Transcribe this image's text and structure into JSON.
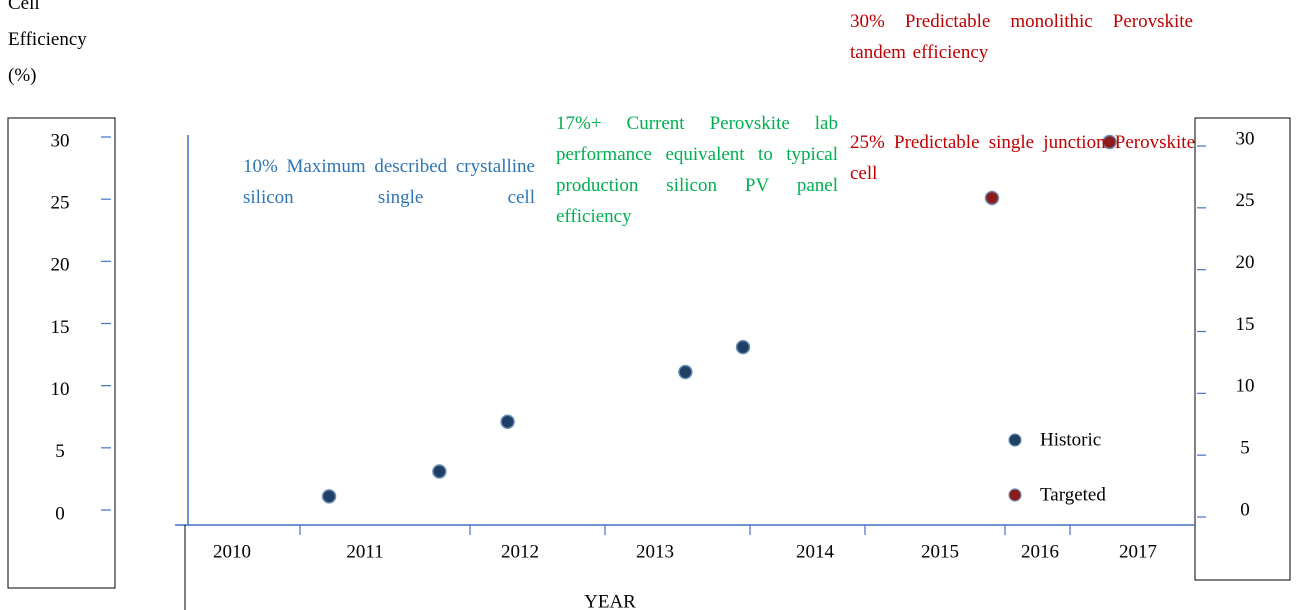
{
  "chart_data": {
    "type": "scatter",
    "y_label": "Cell Efficiency (%)",
    "x_label": "YEAR",
    "xticks": [
      2010,
      2011,
      2012,
      2013,
      2014,
      2015,
      2016,
      2017
    ],
    "ylim": [
      0,
      30
    ],
    "yticks": [
      0,
      5,
      10,
      15,
      20,
      25,
      30
    ],
    "y2lim": [
      0,
      30
    ],
    "y2ticks": [
      0,
      5,
      10,
      15,
      20,
      25,
      30
    ],
    "series": [
      {
        "name": "Historic",
        "color": "#1f3f66",
        "x": [
          2010.73,
          2011.48,
          2011.92,
          2013.19,
          2013.55
        ],
        "values": [
          1.5,
          3.5,
          7.5,
          11.5,
          13.5
        ]
      },
      {
        "name": "Targeted",
        "color": "#8e1b1b",
        "x": [
          2015.52,
          2016.71
        ],
        "values": [
          25.5,
          30
        ]
      }
    ],
    "annotations": [
      {
        "text": "10% Maximum described crystalline silicon single cell",
        "color": "#2e75b6"
      },
      {
        "text": "17%+ Current Perovskite lab performance equivalent to typical production silicon PV panel efficiency",
        "color": "#00b050"
      },
      {
        "text": "30% Predictable monolithic Perovskite tandem efficiency",
        "color": "#c00000"
      },
      {
        "text": "25% Predictable single junction Perovskite cell",
        "color": "#c00000"
      }
    ],
    "legend": "lower right"
  }
}
